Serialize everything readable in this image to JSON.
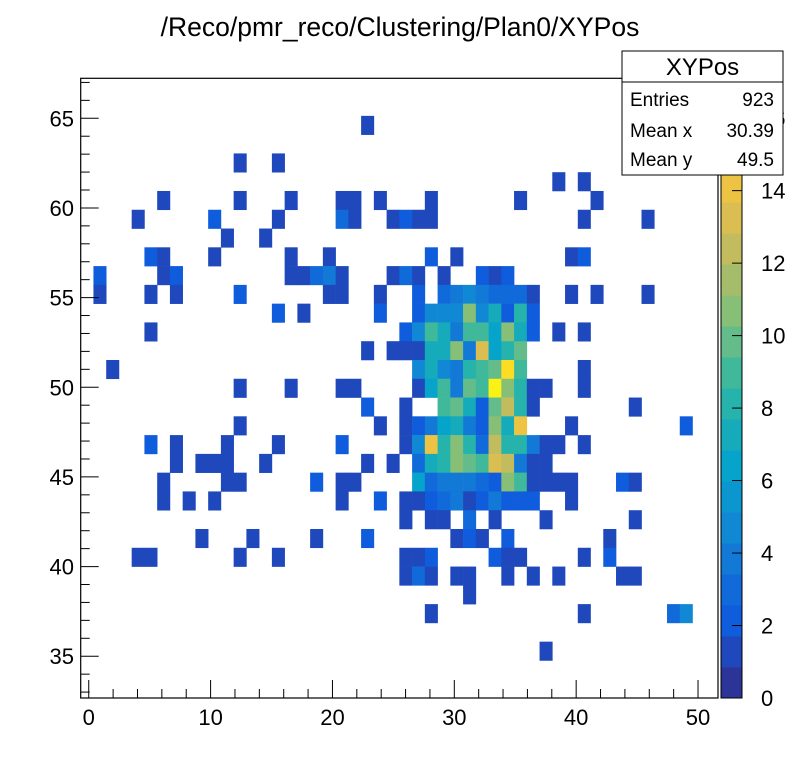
{
  "chart_data": {
    "type": "heatmap",
    "title": "/Reco/pmr_reco/Clustering/Plan0/XYPos",
    "xlabel": "",
    "ylabel": "",
    "grid": false,
    "x_axis": {
      "range": [
        -0.66,
        51.64
      ],
      "nbins": 50,
      "major_ticks": [
        0,
        10,
        20,
        30,
        40,
        50
      ],
      "tick_labels": [
        "0",
        "10",
        "20",
        "30",
        "40",
        "50"
      ]
    },
    "y_axis": {
      "range": [
        32.67,
        67.23
      ],
      "nbins": 33,
      "major_ticks": [
        35,
        40,
        45,
        50,
        55,
        60,
        65
      ],
      "tick_labels": [
        "35",
        "40",
        "45",
        "50",
        "55",
        "60",
        "65"
      ]
    },
    "z_axis": {
      "range": [
        0,
        17.1
      ],
      "palette": "kBird",
      "levels": 20,
      "major_ticks": [
        0,
        2,
        4,
        6,
        8,
        10,
        12,
        14,
        16
      ],
      "tick_labels": [
        "0",
        "2",
        "4",
        "6",
        "8",
        "10",
        "12",
        "14",
        "16"
      ],
      "placement": "right"
    },
    "cell_format": [
      "binx",
      "biny",
      "count"
    ],
    "cells": [
      [
        23,
        31,
        1
      ],
      [
        13,
        29,
        1
      ],
      [
        16,
        29,
        1
      ],
      [
        38,
        28,
        1
      ],
      [
        40,
        28,
        1
      ],
      [
        7,
        27,
        1
      ],
      [
        13,
        27,
        1
      ],
      [
        17,
        27,
        1
      ],
      [
        21,
        27,
        1
      ],
      [
        22,
        27,
        1
      ],
      [
        24,
        27,
        1
      ],
      [
        28,
        27,
        1
      ],
      [
        35,
        27,
        1
      ],
      [
        41,
        27,
        1
      ],
      [
        5,
        26,
        1
      ],
      [
        11,
        26,
        2
      ],
      [
        16,
        26,
        1
      ],
      [
        21,
        26,
        3
      ],
      [
        22,
        26,
        1
      ],
      [
        25,
        26,
        1
      ],
      [
        26,
        26,
        2
      ],
      [
        27,
        26,
        1
      ],
      [
        28,
        26,
        1
      ],
      [
        40,
        26,
        1
      ],
      [
        45,
        26,
        1
      ],
      [
        12,
        25,
        1
      ],
      [
        15,
        25,
        1
      ],
      [
        6,
        24,
        2
      ],
      [
        7,
        24,
        1
      ],
      [
        11,
        24,
        1
      ],
      [
        17,
        24,
        1
      ],
      [
        20,
        24,
        1
      ],
      [
        28,
        24,
        2
      ],
      [
        30,
        24,
        1
      ],
      [
        39,
        24,
        1
      ],
      [
        40,
        24,
        2
      ],
      [
        2,
        23,
        2
      ],
      [
        7,
        23,
        1
      ],
      [
        8,
        23,
        2
      ],
      [
        17,
        23,
        1
      ],
      [
        18,
        23,
        1
      ],
      [
        19,
        23,
        3
      ],
      [
        20,
        23,
        4
      ],
      [
        21,
        23,
        1
      ],
      [
        25,
        23,
        1
      ],
      [
        26,
        23,
        3
      ],
      [
        27,
        23,
        1
      ],
      [
        29,
        23,
        1
      ],
      [
        32,
        23,
        2
      ],
      [
        33,
        23,
        1
      ],
      [
        34,
        23,
        2
      ],
      [
        2,
        22,
        1
      ],
      [
        6,
        22,
        1
      ],
      [
        8,
        22,
        1
      ],
      [
        13,
        22,
        2
      ],
      [
        20,
        22,
        1
      ],
      [
        21,
        22,
        1
      ],
      [
        24,
        22,
        1
      ],
      [
        27,
        22,
        2
      ],
      [
        29,
        22,
        3
      ],
      [
        30,
        22,
        4
      ],
      [
        31,
        22,
        5
      ],
      [
        32,
        22,
        4
      ],
      [
        33,
        22,
        3
      ],
      [
        34,
        22,
        3
      ],
      [
        35,
        22,
        3
      ],
      [
        36,
        22,
        1
      ],
      [
        39,
        22,
        1
      ],
      [
        41,
        22,
        1
      ],
      [
        45,
        22,
        1
      ],
      [
        16,
        21,
        2
      ],
      [
        18,
        21,
        1
      ],
      [
        24,
        21,
        2
      ],
      [
        27,
        21,
        2
      ],
      [
        28,
        21,
        5
      ],
      [
        29,
        21,
        5
      ],
      [
        30,
        21,
        5
      ],
      [
        31,
        21,
        11
      ],
      [
        32,
        21,
        5
      ],
      [
        33,
        21,
        7
      ],
      [
        34,
        21,
        2
      ],
      [
        35,
        21,
        8
      ],
      [
        36,
        21,
        2
      ],
      [
        6,
        20,
        1
      ],
      [
        26,
        20,
        2
      ],
      [
        27,
        20,
        5
      ],
      [
        28,
        20,
        9
      ],
      [
        29,
        20,
        7
      ],
      [
        30,
        20,
        4
      ],
      [
        31,
        20,
        9
      ],
      [
        32,
        20,
        9
      ],
      [
        33,
        20,
        6
      ],
      [
        34,
        20,
        11
      ],
      [
        35,
        20,
        7
      ],
      [
        36,
        20,
        2
      ],
      [
        38,
        20,
        1
      ],
      [
        40,
        20,
        1
      ],
      [
        23,
        19,
        1
      ],
      [
        25,
        19,
        1
      ],
      [
        26,
        19,
        1
      ],
      [
        27,
        19,
        1
      ],
      [
        28,
        19,
        7
      ],
      [
        29,
        19,
        7
      ],
      [
        30,
        19,
        11
      ],
      [
        31,
        19,
        4
      ],
      [
        32,
        19,
        13
      ],
      [
        33,
        19,
        6
      ],
      [
        34,
        19,
        8
      ],
      [
        35,
        19,
        10
      ],
      [
        3,
        18,
        1
      ],
      [
        27,
        18,
        5
      ],
      [
        28,
        18,
        7
      ],
      [
        29,
        18,
        5
      ],
      [
        30,
        18,
        4
      ],
      [
        31,
        18,
        8
      ],
      [
        32,
        18,
        9
      ],
      [
        33,
        18,
        10
      ],
      [
        34,
        18,
        16
      ],
      [
        35,
        18,
        9
      ],
      [
        40,
        18,
        1
      ],
      [
        13,
        17,
        1
      ],
      [
        17,
        17,
        1
      ],
      [
        21,
        17,
        1
      ],
      [
        22,
        17,
        1
      ],
      [
        27,
        17,
        1
      ],
      [
        28,
        17,
        6
      ],
      [
        29,
        17,
        9
      ],
      [
        30,
        17,
        4
      ],
      [
        31,
        17,
        10
      ],
      [
        32,
        17,
        9
      ],
      [
        33,
        17,
        17
      ],
      [
        34,
        17,
        11
      ],
      [
        35,
        17,
        8
      ],
      [
        36,
        17,
        1
      ],
      [
        37,
        17,
        1
      ],
      [
        40,
        17,
        1
      ],
      [
        23,
        16,
        2
      ],
      [
        26,
        16,
        1
      ],
      [
        29,
        16,
        9
      ],
      [
        30,
        16,
        10
      ],
      [
        31,
        16,
        7
      ],
      [
        32,
        16,
        2
      ],
      [
        33,
        16,
        10
      ],
      [
        34,
        16,
        12
      ],
      [
        35,
        16,
        8
      ],
      [
        36,
        16,
        1
      ],
      [
        44,
        16,
        1
      ],
      [
        13,
        15,
        1
      ],
      [
        24,
        15,
        1
      ],
      [
        26,
        15,
        1
      ],
      [
        27,
        15,
        2
      ],
      [
        28,
        15,
        4
      ],
      [
        29,
        15,
        6
      ],
      [
        30,
        15,
        7
      ],
      [
        31,
        15,
        4
      ],
      [
        32,
        15,
        2
      ],
      [
        33,
        15,
        11
      ],
      [
        34,
        15,
        7
      ],
      [
        35,
        15,
        14
      ],
      [
        39,
        15,
        1
      ],
      [
        48,
        15,
        2
      ],
      [
        6,
        14,
        2
      ],
      [
        8,
        14,
        1
      ],
      [
        12,
        14,
        1
      ],
      [
        16,
        14,
        1
      ],
      [
        21,
        14,
        2
      ],
      [
        26,
        14,
        1
      ],
      [
        27,
        14,
        5
      ],
      [
        28,
        14,
        14
      ],
      [
        29,
        14,
        8
      ],
      [
        30,
        14,
        11
      ],
      [
        31,
        14,
        8
      ],
      [
        32,
        14,
        3
      ],
      [
        33,
        14,
        12
      ],
      [
        34,
        14,
        8
      ],
      [
        35,
        14,
        8
      ],
      [
        36,
        14,
        4
      ],
      [
        37,
        14,
        1
      ],
      [
        38,
        14,
        1
      ],
      [
        40,
        14,
        1
      ],
      [
        8,
        13,
        1
      ],
      [
        10,
        13,
        1
      ],
      [
        11,
        13,
        1
      ],
      [
        12,
        13,
        1
      ],
      [
        15,
        13,
        1
      ],
      [
        23,
        13,
        1
      ],
      [
        25,
        13,
        1
      ],
      [
        27,
        13,
        3
      ],
      [
        28,
        13,
        7
      ],
      [
        29,
        13,
        8
      ],
      [
        30,
        13,
        11
      ],
      [
        31,
        13,
        10
      ],
      [
        32,
        13,
        9
      ],
      [
        33,
        13,
        13
      ],
      [
        34,
        13,
        12
      ],
      [
        35,
        13,
        4
      ],
      [
        36,
        13,
        1
      ],
      [
        37,
        13,
        1
      ],
      [
        7,
        12,
        1
      ],
      [
        12,
        12,
        1
      ],
      [
        13,
        12,
        1
      ],
      [
        19,
        12,
        2
      ],
      [
        21,
        12,
        1
      ],
      [
        22,
        12,
        1
      ],
      [
        27,
        12,
        6
      ],
      [
        28,
        12,
        3
      ],
      [
        29,
        12,
        4
      ],
      [
        30,
        12,
        4
      ],
      [
        31,
        12,
        4
      ],
      [
        32,
        12,
        3
      ],
      [
        33,
        12,
        2
      ],
      [
        34,
        12,
        11
      ],
      [
        35,
        12,
        9
      ],
      [
        36,
        12,
        1
      ],
      [
        37,
        12,
        1
      ],
      [
        38,
        12,
        1
      ],
      [
        39,
        12,
        1
      ],
      [
        43,
        12,
        2
      ],
      [
        44,
        12,
        1
      ],
      [
        7,
        11,
        1
      ],
      [
        9,
        11,
        1
      ],
      [
        11,
        11,
        1
      ],
      [
        21,
        11,
        1
      ],
      [
        24,
        11,
        2
      ],
      [
        26,
        11,
        1
      ],
      [
        27,
        11,
        1
      ],
      [
        28,
        11,
        2
      ],
      [
        29,
        11,
        3
      ],
      [
        30,
        11,
        4
      ],
      [
        31,
        11,
        1
      ],
      [
        32,
        11,
        2
      ],
      [
        33,
        11,
        4
      ],
      [
        34,
        11,
        2
      ],
      [
        35,
        11,
        2
      ],
      [
        36,
        11,
        2
      ],
      [
        39,
        11,
        1
      ],
      [
        26,
        10,
        1
      ],
      [
        28,
        10,
        1
      ],
      [
        29,
        10,
        1
      ],
      [
        31,
        10,
        3
      ],
      [
        33,
        10,
        1
      ],
      [
        37,
        10,
        1
      ],
      [
        44,
        10,
        1
      ],
      [
        10,
        9,
        1
      ],
      [
        14,
        9,
        1
      ],
      [
        19,
        9,
        1
      ],
      [
        23,
        9,
        2
      ],
      [
        30,
        9,
        1
      ],
      [
        31,
        9,
        2
      ],
      [
        32,
        9,
        1
      ],
      [
        34,
        9,
        2
      ],
      [
        42,
        9,
        1
      ],
      [
        5,
        8,
        1
      ],
      [
        6,
        8,
        1
      ],
      [
        13,
        8,
        1
      ],
      [
        16,
        8,
        1
      ],
      [
        26,
        8,
        1
      ],
      [
        27,
        8,
        1
      ],
      [
        28,
        8,
        2
      ],
      [
        33,
        8,
        2
      ],
      [
        34,
        8,
        1
      ],
      [
        35,
        8,
        1
      ],
      [
        40,
        8,
        1
      ],
      [
        42,
        8,
        2
      ],
      [
        26,
        7,
        1
      ],
      [
        27,
        7,
        3
      ],
      [
        28,
        7,
        1
      ],
      [
        30,
        7,
        1
      ],
      [
        31,
        7,
        1
      ],
      [
        34,
        7,
        1
      ],
      [
        36,
        7,
        1
      ],
      [
        38,
        7,
        1
      ],
      [
        43,
        7,
        1
      ],
      [
        44,
        7,
        1
      ],
      [
        31,
        6,
        1
      ],
      [
        28,
        5,
        1
      ],
      [
        40,
        5,
        1
      ],
      [
        47,
        5,
        3
      ],
      [
        48,
        5,
        5
      ],
      [
        37,
        3,
        1
      ]
    ]
  },
  "stats_box": {
    "title": "XYPos",
    "rows": [
      {
        "label": "Entries",
        "value": "923"
      },
      {
        "label": "Mean x",
        "value": "30.39"
      },
      {
        "label": "Mean y",
        "value": "49.5"
      }
    ]
  }
}
